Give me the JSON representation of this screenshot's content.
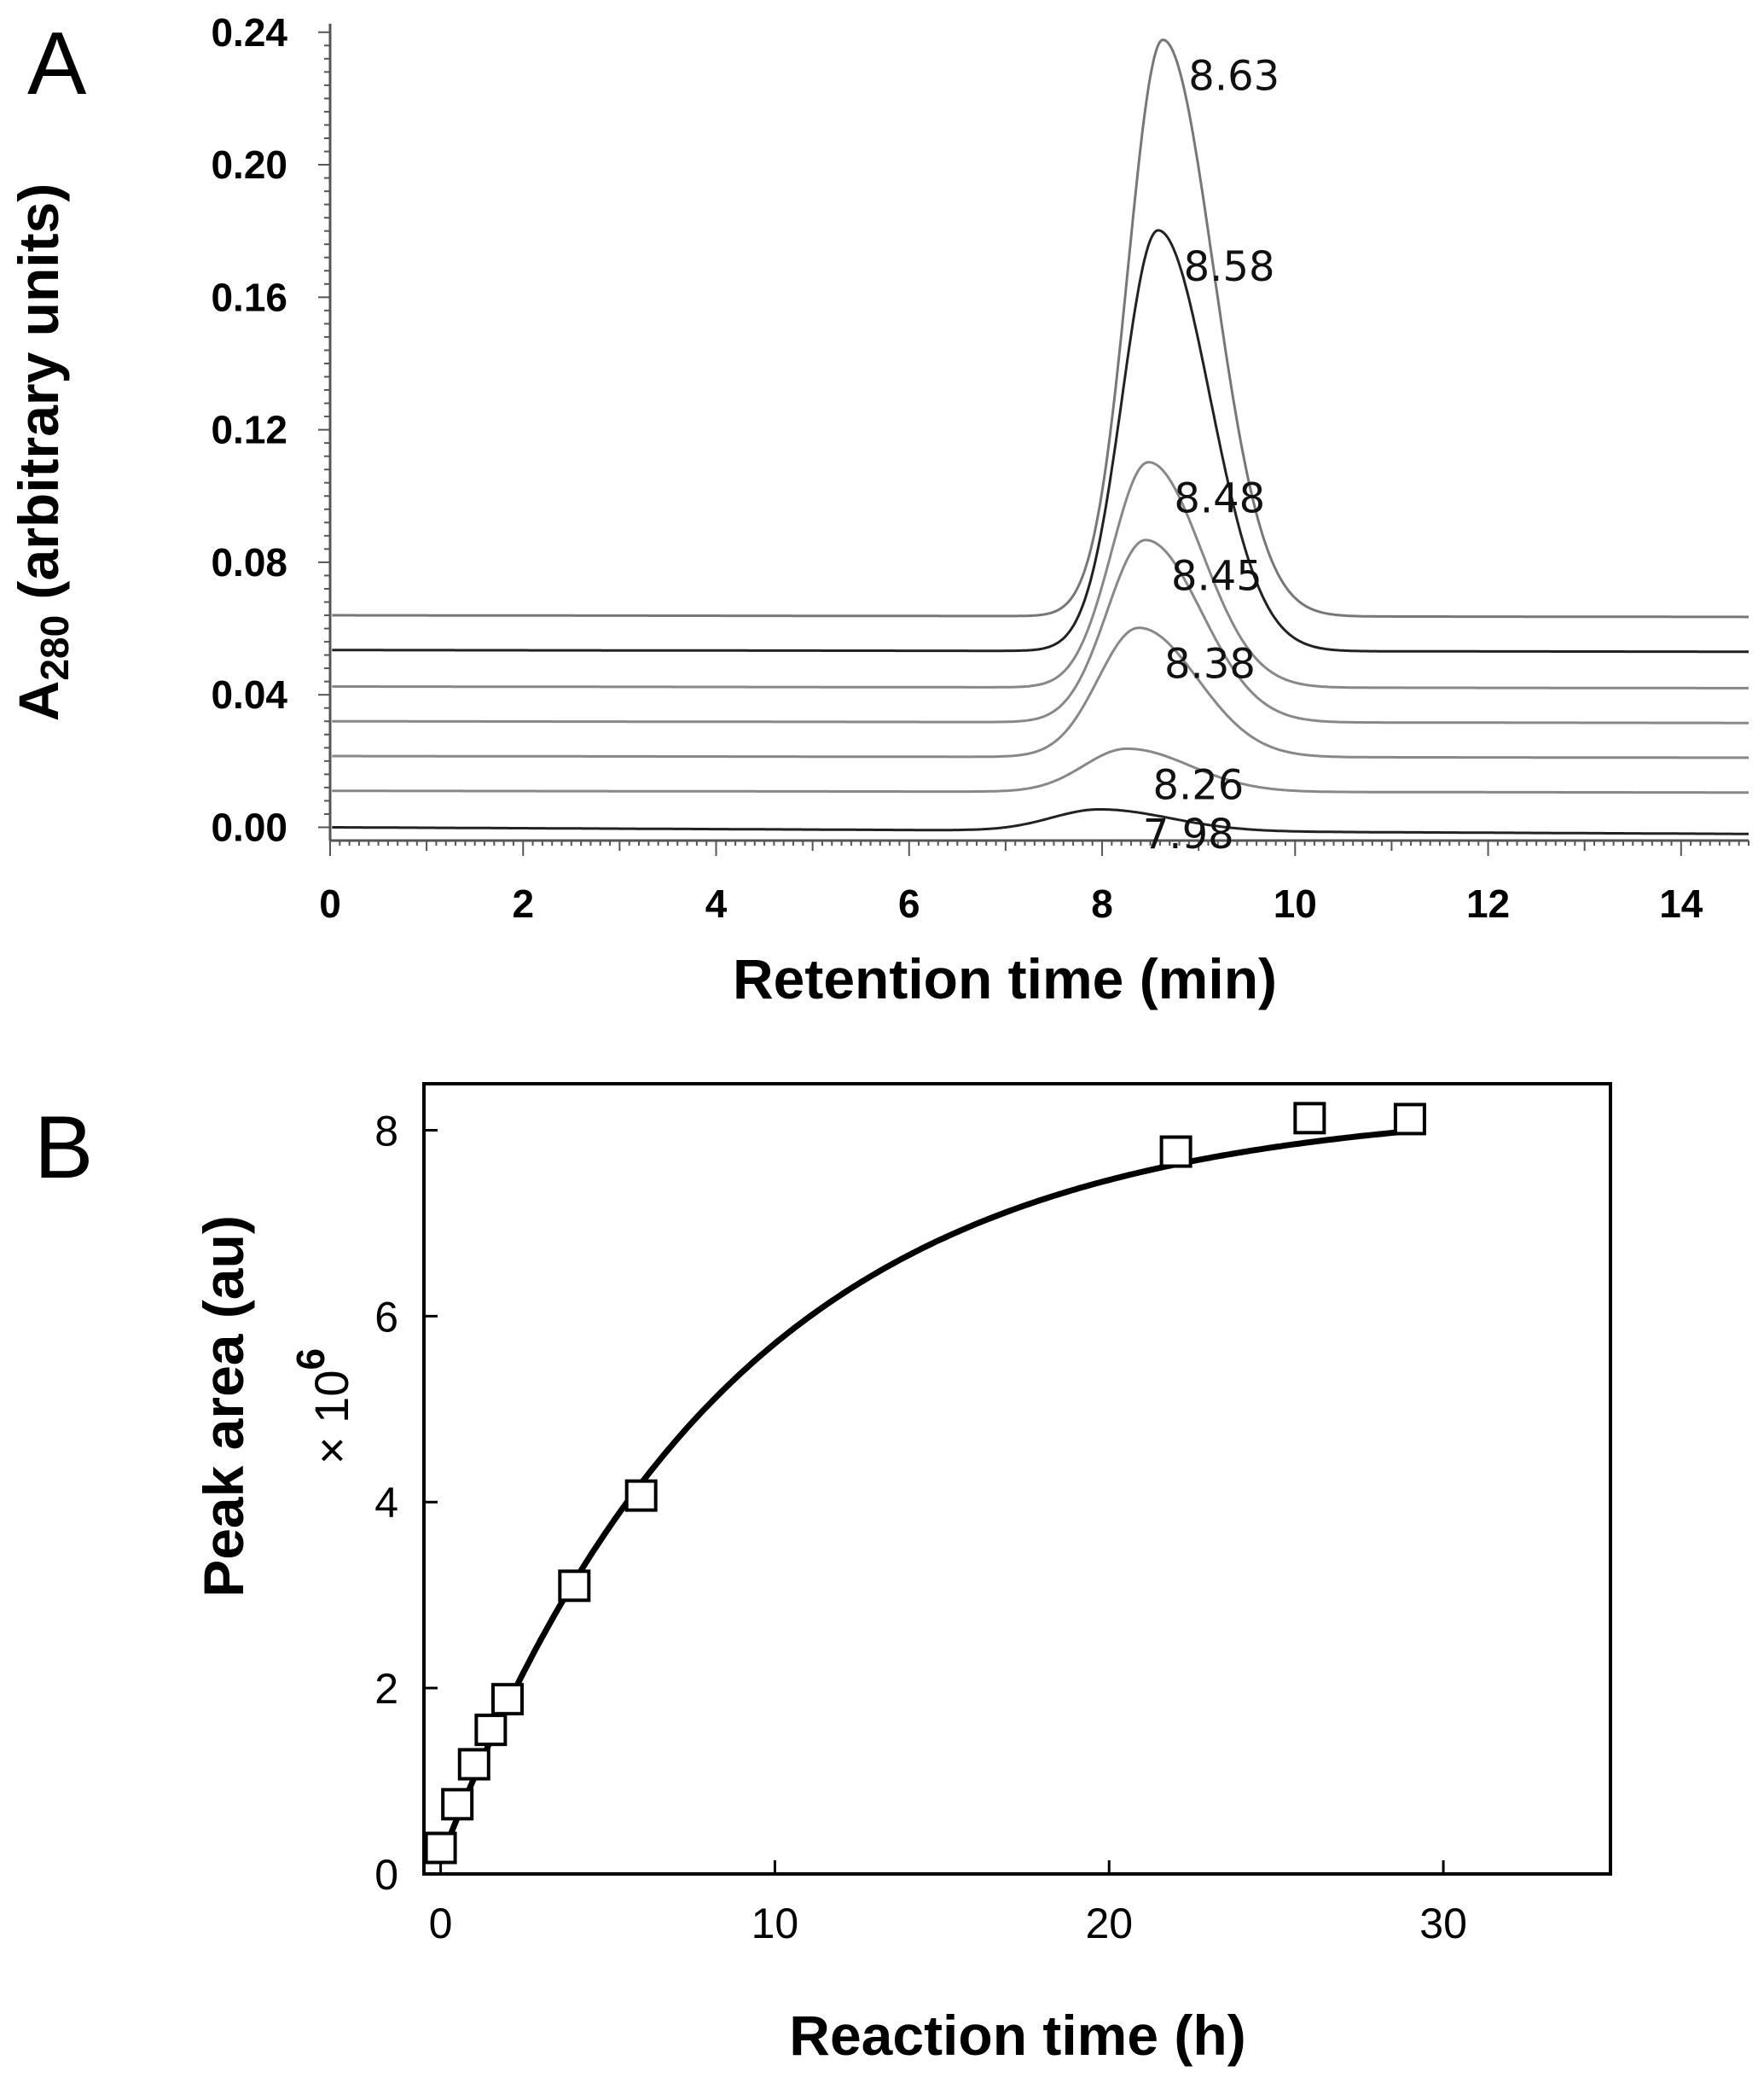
{
  "chart_data": [
    {
      "panel": "A",
      "type": "line",
      "xlabel": "Retention time (min)",
      "ylabel_main": "A",
      "ylabel_sub": "280",
      "ylabel_rest": " (arbitrary units)",
      "xlim": [
        0,
        14.7
      ],
      "ylim": [
        -0.004,
        0.242
      ],
      "xticks": [
        "0",
        "2",
        "4",
        "6",
        "8",
        "10",
        "12",
        "14"
      ],
      "yticks": [
        "0.00",
        "0.04",
        "0.08",
        "0.12",
        "0.16",
        "0.20",
        "0.24"
      ],
      "series": [
        {
          "name": "trace-1",
          "label": "7.98",
          "peak_time": 7.98,
          "baseline": 0.0,
          "peak_height": 0.0065,
          "width": 0.5,
          "color": "#222222"
        },
        {
          "name": "trace-2",
          "label": "8.26",
          "peak_time": 8.26,
          "baseline": 0.011,
          "peak_height": 0.013,
          "width": 0.45,
          "color": "#888888"
        },
        {
          "name": "trace-3",
          "label": "8.38",
          "peak_time": 8.38,
          "baseline": 0.0215,
          "peak_height": 0.039,
          "width": 0.42,
          "color": "#888888"
        },
        {
          "name": "trace-4",
          "label": "8.45",
          "peak_time": 8.45,
          "baseline": 0.032,
          "peak_height": 0.055,
          "width": 0.4,
          "color": "#888888"
        },
        {
          "name": "trace-5",
          "label": "8.48",
          "peak_time": 8.48,
          "baseline": 0.0425,
          "peak_height": 0.068,
          "width": 0.38,
          "color": "#888888"
        },
        {
          "name": "trace-6",
          "label": "8.58",
          "peak_time": 8.58,
          "baseline": 0.0535,
          "peak_height": 0.127,
          "width": 0.37,
          "color": "#222222"
        },
        {
          "name": "trace-7",
          "label": "8.63",
          "peak_time": 8.63,
          "baseline": 0.064,
          "peak_height": 0.174,
          "width": 0.36,
          "color": "#777777"
        }
      ]
    },
    {
      "panel": "B",
      "type": "scatter",
      "xlabel": "Reaction time (h)",
      "ylabel": "Peak area (au)",
      "ylabel_factor": "× 10",
      "ylabel_factor_exp": "6",
      "xlim": [
        -0.5,
        35
      ],
      "ylim": [
        0,
        8.5
      ],
      "xticks": [
        "0",
        "10",
        "20",
        "30"
      ],
      "yticks": [
        "0",
        "2",
        "4",
        "6",
        "8"
      ],
      "points": [
        {
          "x": 0,
          "y": 0.28
        },
        {
          "x": 0.5,
          "y": 0.75
        },
        {
          "x": 1,
          "y": 1.18
        },
        {
          "x": 1.5,
          "y": 1.55
        },
        {
          "x": 2,
          "y": 1.88
        },
        {
          "x": 4,
          "y": 3.1
        },
        {
          "x": 6,
          "y": 4.07
        },
        {
          "x": 22,
          "y": 7.77
        },
        {
          "x": 26,
          "y": 8.13
        },
        {
          "x": 29,
          "y": 8.12
        }
      ],
      "fit": {
        "model": "y = a*(1-exp(-k*x)) + c",
        "a": 8.13,
        "k": 0.115,
        "c": 0.15
      }
    }
  ]
}
